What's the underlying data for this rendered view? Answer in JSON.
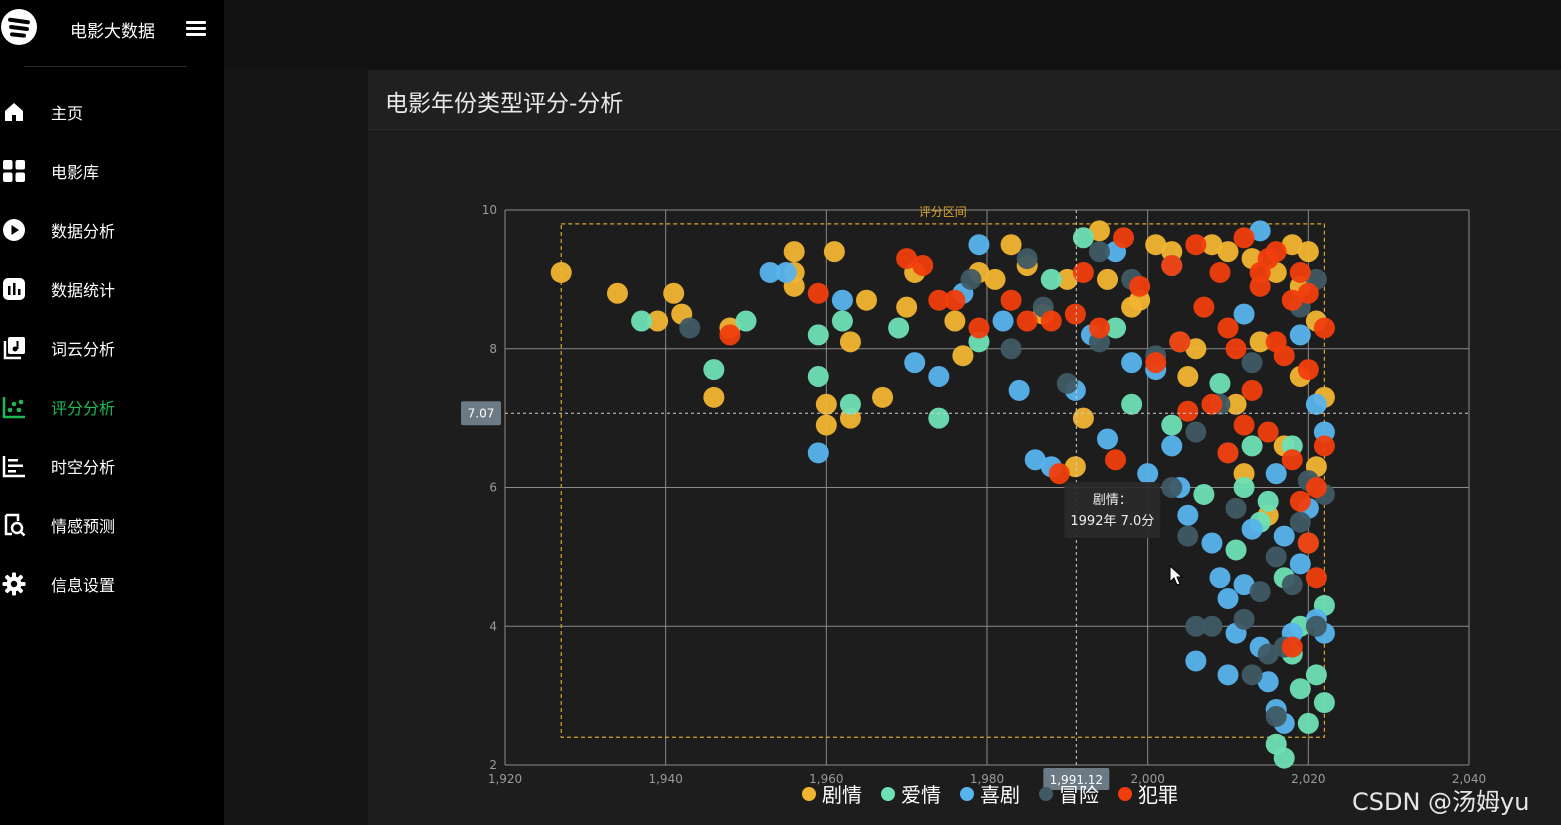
{
  "app": {
    "title": "电影大数据"
  },
  "sidebar": {
    "items": [
      {
        "label": "主页",
        "icon": "home-icon",
        "active": false
      },
      {
        "label": "电影库",
        "icon": "grid-icon",
        "active": false
      },
      {
        "label": "数据分析",
        "icon": "play-circle-icon",
        "active": false
      },
      {
        "label": "数据统计",
        "icon": "bar-chart-icon",
        "active": false
      },
      {
        "label": "词云分析",
        "icon": "music-note-icon",
        "active": false
      },
      {
        "label": "评分分析",
        "icon": "scatter-icon",
        "active": true
      },
      {
        "label": "时空分析",
        "icon": "timeline-icon",
        "active": false
      },
      {
        "label": "情感预测",
        "icon": "search-doc-icon",
        "active": false
      },
      {
        "label": "信息设置",
        "icon": "gear-icon",
        "active": false
      }
    ]
  },
  "card": {
    "title": "电影年份类型评分-分析"
  },
  "colors": {
    "accent": "#1db954",
    "剧情": "#f2b531",
    "爱情": "#6fe0b5",
    "喜剧": "#58b4ee",
    "冒险": "#3f5a64",
    "犯罪": "#f03e0d"
  },
  "chart_data": {
    "type": "scatter",
    "title": "",
    "xlabel": "",
    "ylabel": "",
    "xlim": [
      1920,
      2040
    ],
    "ylim": [
      2,
      10
    ],
    "xticks": [
      "1,920",
      "1,940",
      "1,960",
      "1,980",
      "2,000",
      "2,020",
      "2,040"
    ],
    "yticks": [
      "2",
      "4",
      "6",
      "8",
      "10"
    ],
    "grid": true,
    "legend_position": "bottom",
    "mark_area_label": "评分区间",
    "mark_area": {
      "x": [
        1927,
        2022
      ],
      "y": [
        2.4,
        9.8
      ]
    },
    "crosshair": {
      "x_label": "1,991.12",
      "y_label": "7.07"
    },
    "tooltip": {
      "line1": "剧情：",
      "line2": "1992年 7.0分"
    },
    "series": [
      {
        "name": "剧情",
        "points": [
          [
            1927,
            9.1
          ],
          [
            1934,
            8.8
          ],
          [
            1939,
            8.4
          ],
          [
            1941,
            8.8
          ],
          [
            1942,
            8.5
          ],
          [
            1946,
            7.3
          ],
          [
            1948,
            8.3
          ],
          [
            1956,
            8.9
          ],
          [
            1956,
            9.1
          ],
          [
            1956,
            9.4
          ],
          [
            1961,
            9.4
          ],
          [
            1963,
            8.1
          ],
          [
            1965,
            8.7
          ],
          [
            1967,
            7.3
          ],
          [
            1970,
            8.6
          ],
          [
            1971,
            9.1
          ],
          [
            1976,
            8.4
          ],
          [
            1979,
            9.1
          ],
          [
            1981,
            9.0
          ],
          [
            1983,
            9.5
          ],
          [
            1985,
            9.2
          ],
          [
            1987,
            8.5
          ],
          [
            1990,
            9.0
          ],
          [
            1992,
            7.0
          ],
          [
            1994,
            9.7
          ],
          [
            1995,
            9.0
          ],
          [
            1998,
            8.6
          ],
          [
            2001,
            9.5
          ],
          [
            2003,
            9.4
          ],
          [
            2005,
            7.6
          ],
          [
            2008,
            9.5
          ],
          [
            2010,
            9.4
          ],
          [
            2012,
            6.2
          ],
          [
            2013,
            9.3
          ],
          [
            2015,
            5.6
          ],
          [
            2016,
            9.1
          ],
          [
            2018,
            9.5
          ],
          [
            2019,
            8.9
          ],
          [
            2020,
            9.4
          ],
          [
            2021,
            8.4
          ],
          [
            2022,
            7.3
          ],
          [
            1991,
            6.3
          ],
          [
            1963,
            7.0
          ],
          [
            1960,
            6.9
          ],
          [
            1960,
            7.2
          ],
          [
            1977,
            7.9
          ],
          [
            1999,
            8.7
          ],
          [
            2006,
            8.0
          ],
          [
            2011,
            7.2
          ],
          [
            2017,
            6.6
          ],
          [
            2014,
            8.1
          ],
          [
            2019,
            7.6
          ],
          [
            2021,
            6.3
          ]
        ]
      },
      {
        "name": "爱情",
        "points": [
          [
            1937,
            8.4
          ],
          [
            1946,
            7.7
          ],
          [
            1950,
            8.4
          ],
          [
            1959,
            8.2
          ],
          [
            1959,
            7.6
          ],
          [
            1962,
            8.4
          ],
          [
            1963,
            7.2
          ],
          [
            1969,
            8.3
          ],
          [
            1974,
            7.0
          ],
          [
            1979,
            8.1
          ],
          [
            1988,
            9.0
          ],
          [
            1992,
            9.6
          ],
          [
            1996,
            8.3
          ],
          [
            2004,
            8.1
          ],
          [
            2009,
            7.5
          ],
          [
            2013,
            6.6
          ],
          [
            2015,
            5.8
          ],
          [
            2017,
            4.7
          ],
          [
            2018,
            3.6
          ],
          [
            2019,
            3.1
          ],
          [
            2020,
            2.6
          ],
          [
            2021,
            3.3
          ],
          [
            2022,
            2.9
          ],
          [
            2016,
            2.3
          ],
          [
            2017,
            2.1
          ],
          [
            2012,
            6.0
          ],
          [
            2014,
            5.5
          ],
          [
            1998,
            7.2
          ],
          [
            2003,
            6.9
          ],
          [
            2007,
            5.9
          ],
          [
            2011,
            5.1
          ],
          [
            2019,
            4.0
          ],
          [
            2020,
            5.2
          ],
          [
            2022,
            4.3
          ],
          [
            2018,
            6.6
          ]
        ]
      },
      {
        "name": "喜剧",
        "points": [
          [
            1953,
            9.1
          ],
          [
            1955,
            9.1
          ],
          [
            1959,
            6.5
          ],
          [
            1962,
            8.7
          ],
          [
            1971,
            7.8
          ],
          [
            1974,
            7.6
          ],
          [
            1977,
            8.8
          ],
          [
            1979,
            9.5
          ],
          [
            1982,
            8.4
          ],
          [
            1984,
            7.4
          ],
          [
            1986,
            6.4
          ],
          [
            1988,
            6.3
          ],
          [
            1991,
            7.4
          ],
          [
            1993,
            8.2
          ],
          [
            1995,
            6.7
          ],
          [
            1996,
            9.4
          ],
          [
            1998,
            7.8
          ],
          [
            2001,
            7.7
          ],
          [
            2003,
            6.6
          ],
          [
            2004,
            6.0
          ],
          [
            2005,
            5.6
          ],
          [
            2008,
            5.2
          ],
          [
            2009,
            4.7
          ],
          [
            2010,
            4.4
          ],
          [
            2011,
            3.9
          ],
          [
            2012,
            4.6
          ],
          [
            2013,
            5.4
          ],
          [
            2014,
            3.7
          ],
          [
            2015,
            3.2
          ],
          [
            2016,
            2.8
          ],
          [
            2017,
            2.6
          ],
          [
            2018,
            3.9
          ],
          [
            2019,
            4.9
          ],
          [
            2020,
            5.7
          ],
          [
            2021,
            4.1
          ],
          [
            2022,
            6.8
          ],
          [
            2006,
            3.5
          ],
          [
            2010,
            3.3
          ],
          [
            2003,
            9.2
          ],
          [
            2014,
            9.7
          ],
          [
            2019,
            8.2
          ],
          [
            2021,
            7.2
          ],
          [
            2000,
            6.2
          ],
          [
            2017,
            5.3
          ],
          [
            2022,
            3.9
          ],
          [
            2016,
            6.2
          ],
          [
            2012,
            8.5
          ]
        ]
      },
      {
        "name": "冒险",
        "points": [
          [
            1943,
            8.3
          ],
          [
            1978,
            9.0
          ],
          [
            1983,
            8.0
          ],
          [
            1985,
            9.3
          ],
          [
            1987,
            8.6
          ],
          [
            1990,
            7.5
          ],
          [
            1994,
            8.1
          ],
          [
            1998,
            9.0
          ],
          [
            2001,
            7.9
          ],
          [
            2003,
            6.0
          ],
          [
            2005,
            5.3
          ],
          [
            2006,
            6.8
          ],
          [
            2008,
            4.0
          ],
          [
            2010,
            6.5
          ],
          [
            2011,
            5.7
          ],
          [
            2012,
            4.1
          ],
          [
            2013,
            3.3
          ],
          [
            2014,
            4.5
          ],
          [
            2015,
            3.6
          ],
          [
            2016,
            5.0
          ],
          [
            2017,
            3.7
          ],
          [
            2018,
            4.6
          ],
          [
            2019,
            5.5
          ],
          [
            2020,
            6.1
          ],
          [
            2021,
            4.0
          ],
          [
            2022,
            5.9
          ],
          [
            2016,
            2.7
          ],
          [
            2006,
            4.0
          ],
          [
            1994,
            9.4
          ],
          [
            2009,
            7.2
          ],
          [
            2013,
            7.8
          ],
          [
            2019,
            8.6
          ],
          [
            2021,
            9.0
          ]
        ]
      },
      {
        "name": "犯罪",
        "points": [
          [
            1948,
            8.2
          ],
          [
            1959,
            8.8
          ],
          [
            1970,
            9.3
          ],
          [
            1972,
            9.2
          ],
          [
            1974,
            8.7
          ],
          [
            1976,
            8.7
          ],
          [
            1979,
            8.3
          ],
          [
            1983,
            8.7
          ],
          [
            1985,
            8.4
          ],
          [
            1988,
            8.4
          ],
          [
            1989,
            6.2
          ],
          [
            1991,
            8.5
          ],
          [
            1992,
            9.1
          ],
          [
            1994,
            8.3
          ],
          [
            1996,
            6.4
          ],
          [
            1997,
            9.6
          ],
          [
            1999,
            8.9
          ],
          [
            2001,
            7.8
          ],
          [
            2003,
            9.2
          ],
          [
            2004,
            8.1
          ],
          [
            2005,
            7.1
          ],
          [
            2006,
            9.5
          ],
          [
            2007,
            8.6
          ],
          [
            2008,
            7.2
          ],
          [
            2009,
            9.1
          ],
          [
            2010,
            6.5
          ],
          [
            2011,
            8.0
          ],
          [
            2012,
            9.6
          ],
          [
            2013,
            7.4
          ],
          [
            2014,
            8.9
          ],
          [
            2015,
            6.8
          ],
          [
            2016,
            9.4
          ],
          [
            2017,
            7.9
          ],
          [
            2018,
            6.4
          ],
          [
            2019,
            9.1
          ],
          [
            2020,
            7.7
          ],
          [
            2021,
            6.0
          ],
          [
            2022,
            8.3
          ],
          [
            2019,
            5.8
          ],
          [
            2020,
            5.2
          ],
          [
            2021,
            4.7
          ],
          [
            2018,
            3.7
          ],
          [
            2014,
            9.1
          ],
          [
            2016,
            8.1
          ],
          [
            2012,
            6.9
          ],
          [
            2018,
            8.7
          ],
          [
            2022,
            6.6
          ],
          [
            2015,
            9.3
          ],
          [
            2010,
            8.3
          ],
          [
            2020,
            8.8
          ]
        ]
      }
    ]
  },
  "watermark": "CSDN @汤姆yu"
}
